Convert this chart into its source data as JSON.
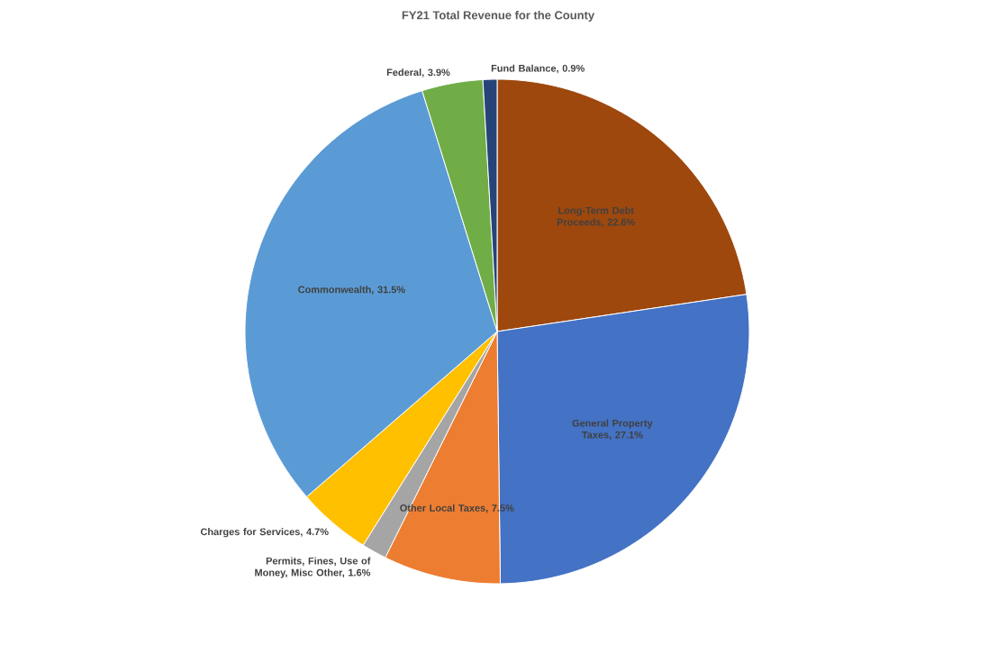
{
  "chart_data": {
    "type": "pie",
    "title": "FY21 Total Revenue for the County",
    "categories": [
      "Long-Term Debt Proceeds, 22.6%",
      "General Property Taxes, 27.1%",
      "Other Local Taxes, 7.5%",
      "Permits, Fines, Use of Money, Misc Other, 1.6%",
      "Charges for Services, 4.7%",
      "Commonwealth, 31.5%",
      "Federal, 3.9%",
      "Fund Balance, 0.9%"
    ],
    "values": [
      22.6,
      27.1,
      7.5,
      1.6,
      4.7,
      31.5,
      3.9,
      0.9
    ],
    "colors": [
      "#9e480e",
      "#4472c4",
      "#ed7d31",
      "#a5a5a5",
      "#ffc000",
      "#5b9bd5",
      "#70ad47",
      "#264478"
    ]
  }
}
